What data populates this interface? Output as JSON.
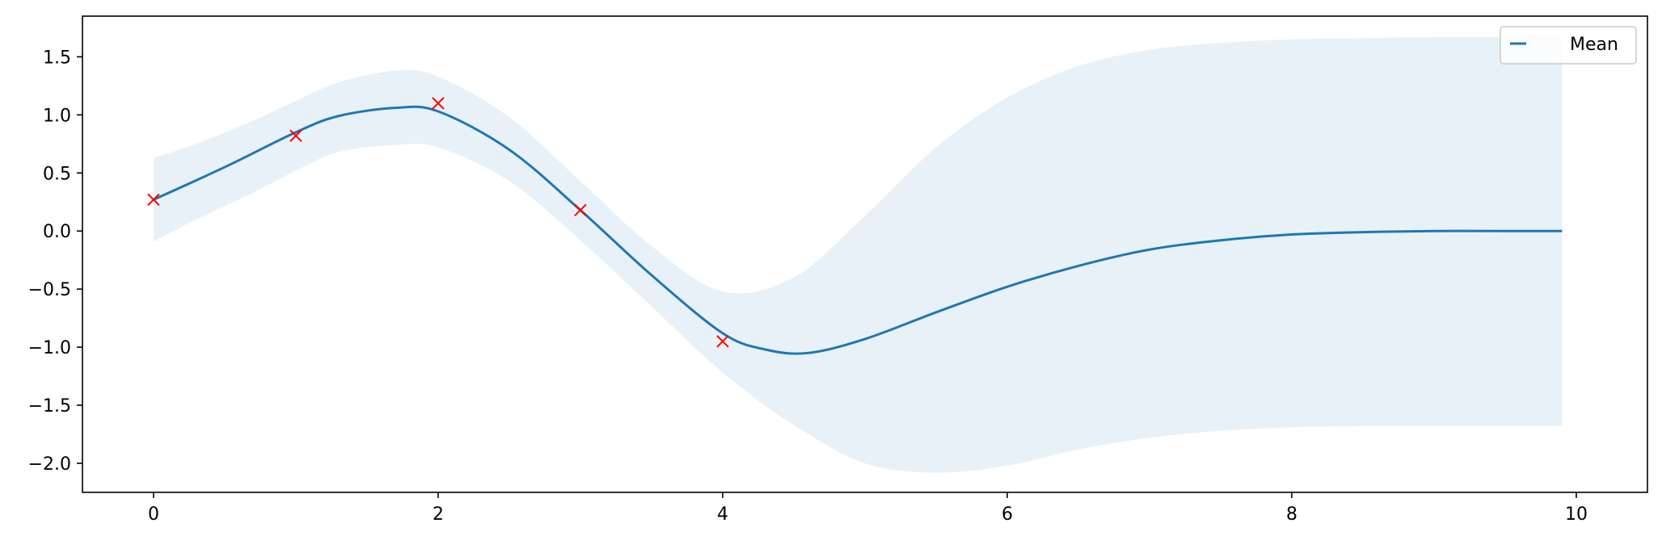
{
  "chart_data": {
    "type": "line",
    "title": "",
    "xlabel": "",
    "ylabel": "",
    "xlim": [
      -0.5,
      10.5
    ],
    "ylim": [
      -2.25,
      1.85
    ],
    "grid": false,
    "legend_placement": "top-right",
    "x_ticks": [
      0,
      2,
      4,
      6,
      8,
      10
    ],
    "x_tick_labels": [
      "0",
      "2",
      "4",
      "6",
      "8",
      "10"
    ],
    "y_ticks": [
      1.5,
      1.0,
      0.5,
      0.0,
      -0.5,
      -1.0,
      -1.5,
      -2.0
    ],
    "y_tick_labels": [
      "1.5",
      "1.0",
      "0.5",
      "0.0",
      "−0.5",
      "−1.0",
      "−1.5",
      "−2.0"
    ],
    "series": [
      {
        "name": "Mean",
        "kind": "line",
        "color": "#1f77b4",
        "x": [
          0,
          0.5,
          1.0,
          1.3,
          1.7,
          2.0,
          2.5,
          3.0,
          3.5,
          4.0,
          4.3,
          4.6,
          5.0,
          5.5,
          6.0,
          6.5,
          7.0,
          7.5,
          8.0,
          8.5,
          9.0,
          9.5,
          9.9
        ],
        "y": [
          0.27,
          0.55,
          0.85,
          0.99,
          1.06,
          1.03,
          0.7,
          0.18,
          -0.38,
          -0.88,
          -1.02,
          -1.05,
          -0.93,
          -0.7,
          -0.48,
          -0.3,
          -0.16,
          -0.08,
          -0.03,
          -0.01,
          0.0,
          0.0,
          0.0
        ]
      },
      {
        "name": "",
        "kind": "band",
        "color": "#1f77b4",
        "opacity": 0.1,
        "x": [
          0,
          0.3,
          0.7,
          1.0,
          1.3,
          1.7,
          2.0,
          2.5,
          3.0,
          3.5,
          4.0,
          4.5,
          5.0,
          5.5,
          6.0,
          6.5,
          7.0,
          7.5,
          8.0,
          8.5,
          9.0,
          9.5,
          9.9
        ],
        "upper": [
          0.63,
          0.75,
          0.95,
          1.12,
          1.28,
          1.38,
          1.33,
          0.98,
          0.43,
          -0.13,
          -0.52,
          -0.4,
          0.13,
          0.72,
          1.15,
          1.42,
          1.56,
          1.62,
          1.65,
          1.66,
          1.67,
          1.67,
          1.67
        ],
        "lower": [
          -0.09,
          0.1,
          0.33,
          0.52,
          0.68,
          0.74,
          0.72,
          0.43,
          -0.08,
          -0.65,
          -1.22,
          -1.67,
          -2.0,
          -2.08,
          -2.02,
          -1.88,
          -1.78,
          -1.72,
          -1.69,
          -1.68,
          -1.68,
          -1.68,
          -1.68
        ]
      },
      {
        "name": "",
        "kind": "scatter",
        "marker": "x",
        "color": "#ff0000",
        "x": [
          0,
          1,
          2,
          3,
          4
        ],
        "y": [
          0.27,
          0.82,
          1.1,
          0.18,
          -0.95
        ]
      }
    ],
    "legend": [
      {
        "label": "Mean",
        "color": "#1f77b4"
      }
    ]
  }
}
